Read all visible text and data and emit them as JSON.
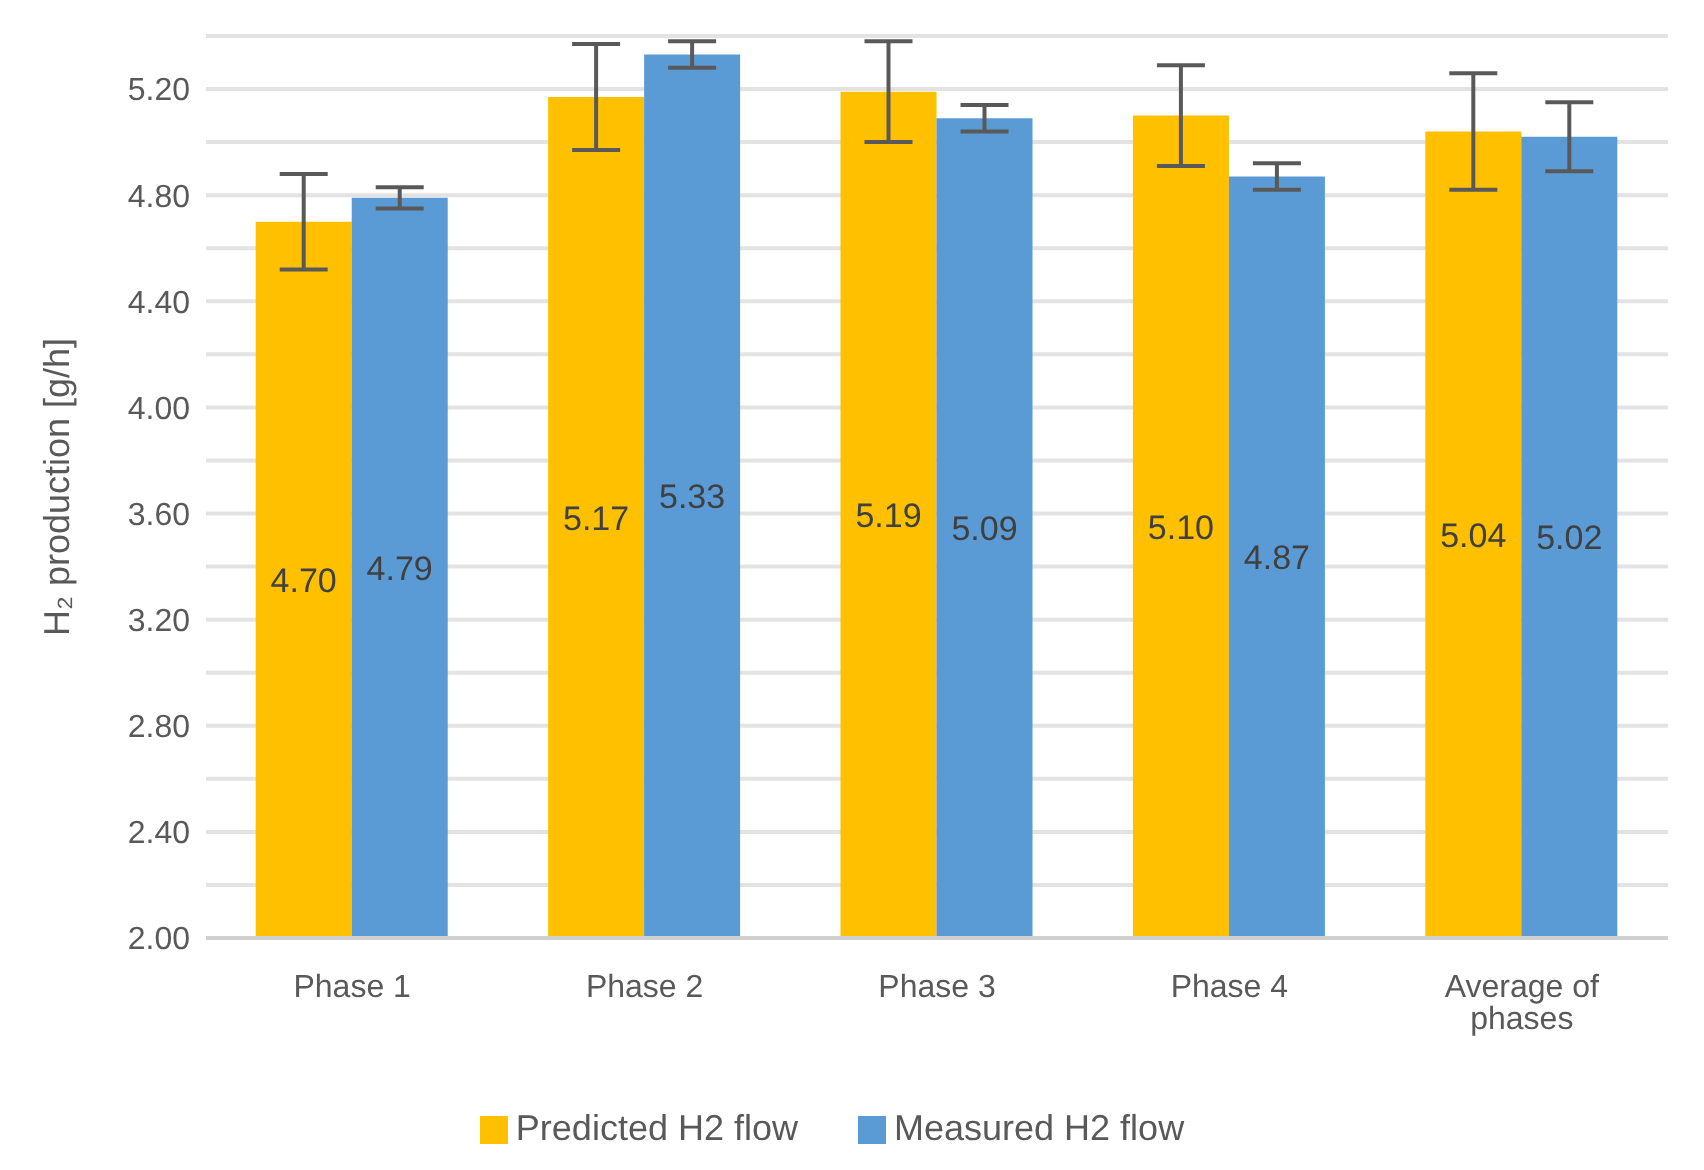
{
  "chart_data": {
    "type": "bar",
    "ylabel": "H₂ production [g/h]",
    "categories": [
      "Phase 1",
      "Phase 2",
      "Phase 3",
      "Phase 4",
      "Average of phases"
    ],
    "series": [
      {
        "name": "Predicted H2 flow",
        "color": "#ffc000",
        "values": [
          4.7,
          5.17,
          5.19,
          5.1,
          5.04
        ],
        "errors": [
          0.18,
          0.2,
          0.19,
          0.19,
          0.22
        ],
        "value_labels": [
          "4.70",
          "5.17",
          "5.19",
          "5.10",
          "5.04"
        ]
      },
      {
        "name": "Measured H2 flow",
        "color": "#5b9bd5",
        "values": [
          4.79,
          5.33,
          5.09,
          4.87,
          5.02
        ],
        "errors": [
          0.04,
          0.05,
          0.05,
          0.05,
          0.13
        ],
        "value_labels": [
          "4.79",
          "5.33",
          "5.09",
          "4.87",
          "5.02"
        ]
      }
    ],
    "ylim": [
      2,
      5.4
    ],
    "yticks": [
      {
        "value": 2,
        "label": "2.00"
      },
      {
        "value": 2.2,
        "label": null
      },
      {
        "value": 2.4,
        "label": "2.40"
      },
      {
        "value": 2.6,
        "label": null
      },
      {
        "value": 2.8,
        "label": "2.80"
      },
      {
        "value": 3,
        "label": null
      },
      {
        "value": 3.2,
        "label": "3.20"
      },
      {
        "value": 3.4,
        "label": null
      },
      {
        "value": 3.6,
        "label": "3.60"
      },
      {
        "value": 3.8,
        "label": null
      },
      {
        "value": 4,
        "label": "4.00"
      },
      {
        "value": 4.2,
        "label": null
      },
      {
        "value": 4.4,
        "label": "4.40"
      },
      {
        "value": 4.6,
        "label": null
      },
      {
        "value": 4.8,
        "label": "4.80"
      },
      {
        "value": 5,
        "label": null
      },
      {
        "value": 5.2,
        "label": "5.20"
      },
      {
        "value": 5.4,
        "label": null
      }
    ],
    "grid": "y",
    "legend": "bottom"
  }
}
